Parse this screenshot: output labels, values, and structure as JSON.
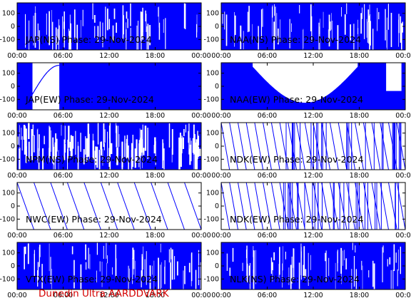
{
  "footer": "Dunedin Ultra AARDDVARK",
  "colors": {
    "trace": "#0000ff",
    "axes": "#000000",
    "footer": "#d40000"
  },
  "chart_data": [
    {
      "type": "line",
      "station": "JAP(NS)",
      "title": "JAP(NS) Phase: 29-Nov-2024",
      "pattern": "dense",
      "xlabel": "",
      "ylabel": "",
      "xlim": [
        0,
        24
      ],
      "ylim": [
        -180,
        180
      ],
      "x_ticks": [
        "00:00",
        "06:00",
        "12:00",
        "18:00",
        "00:00"
      ],
      "y_ticks": [
        "100",
        "0",
        "-100"
      ]
    },
    {
      "type": "line",
      "station": "NAA(NS)",
      "title": "NAA(NS) Phase: 29-Nov-2024",
      "pattern": "dense",
      "xlabel": "",
      "ylabel": "",
      "xlim": [
        0,
        24
      ],
      "ylim": [
        -180,
        180
      ],
      "x_ticks": [
        "00:00",
        "06:00",
        "12:00",
        "18:00",
        "00:00"
      ],
      "y_ticks": [
        "100",
        "0",
        "-100"
      ]
    },
    {
      "type": "line",
      "station": "JAP(EW)",
      "title": "JAP(EW) Phase: 29-Nov-2024",
      "pattern": "jap_ew",
      "xlabel": "",
      "ylabel": "",
      "xlim": [
        0,
        24
      ],
      "ylim": [
        -180,
        180
      ],
      "x_ticks": [
        "00:00",
        "06:00",
        "12:00",
        "18:00",
        "00:00"
      ],
      "y_ticks": [
        "100",
        "0",
        "-100"
      ],
      "gap_hours": [
        2.0,
        5.5
      ]
    },
    {
      "type": "line",
      "station": "NAA(EW)",
      "title": "NAA(EW) Phase: 29-Nov-2024",
      "pattern": "naa_ew",
      "xlabel": "",
      "ylabel": "",
      "xlim": [
        0,
        24
      ],
      "ylim": [
        -180,
        180
      ],
      "x_ticks": [
        "00:00",
        "06:00",
        "12:00",
        "18:00",
        "00:00"
      ],
      "y_ticks": [
        "100",
        "0",
        "-100"
      ],
      "gap_hours": [
        4.1,
        17.8
      ]
    },
    {
      "type": "line",
      "station": "NPM(NS)",
      "title": "NPM(NS) Phase: 29-Nov-2024",
      "pattern": "dense_sparse",
      "xlabel": "",
      "ylabel": "",
      "xlim": [
        0,
        24
      ],
      "ylim": [
        -180,
        180
      ],
      "x_ticks": [
        "00:00",
        "06:00",
        "12:00",
        "18:00",
        "00:00"
      ],
      "y_ticks": [
        "100",
        "0",
        "-100"
      ]
    },
    {
      "type": "line",
      "station": "NDK(EW)",
      "title": "NDK(EW) Phase: 29-Nov-2024",
      "pattern": "sawtooth",
      "xlabel": "",
      "ylabel": "",
      "xlim": [
        0,
        24
      ],
      "ylim": [
        -180,
        180
      ],
      "x_ticks": [
        "00:00",
        "06:00",
        "12:00",
        "18:00",
        "00:00"
      ],
      "y_ticks": [
        "100",
        "0",
        "-100"
      ],
      "wraps": 22
    },
    {
      "type": "line",
      "station": "NWC(EW)",
      "title": "NWC(EW) Phase: 29-Nov-2024",
      "pattern": "sawtooth",
      "xlabel": "",
      "ylabel": "",
      "xlim": [
        0,
        24
      ],
      "ylim": [
        -180,
        180
      ],
      "x_ticks": [
        "00:00",
        "06:00",
        "12:00",
        "18:00",
        "00:00"
      ],
      "y_ticks": [
        "100",
        "0",
        "-100"
      ],
      "wraps": 11
    },
    {
      "type": "line",
      "station": "NDK(EW)",
      "title": "NDK(EW) Phase: 29-Nov-2024",
      "pattern": "sawtooth",
      "xlabel": "",
      "ylabel": "",
      "xlim": [
        0,
        24
      ],
      "ylim": [
        -180,
        180
      ],
      "x_ticks": [
        "00:00",
        "06:00",
        "12:00",
        "18:00",
        "00:00"
      ],
      "y_ticks": [
        "100",
        "0",
        "-100"
      ],
      "wraps": 22
    },
    {
      "type": "line",
      "station": "VTX(EW)",
      "title": "VTX(EW) Phase: 29-Nov-2024",
      "pattern": "dense",
      "xlabel": "",
      "ylabel": "",
      "xlim": [
        0,
        24
      ],
      "ylim": [
        -180,
        180
      ],
      "x_ticks": [
        "00:00",
        "06:00",
        "12:00",
        "18:00",
        "00:00"
      ],
      "y_ticks": [
        "100",
        "0",
        "-100"
      ]
    },
    {
      "type": "line",
      "station": "NLK(NS)",
      "title": "NLK(NS) Phase: 29-Nov-2024",
      "pattern": "dense",
      "xlabel": "",
      "ylabel": "",
      "xlim": [
        0,
        24
      ],
      "ylim": [
        -180,
        180
      ],
      "x_ticks": [
        "00:00",
        "06:00",
        "12:00",
        "18:00",
        "00:00"
      ],
      "y_ticks": [
        "100",
        "0",
        "-100"
      ]
    }
  ]
}
